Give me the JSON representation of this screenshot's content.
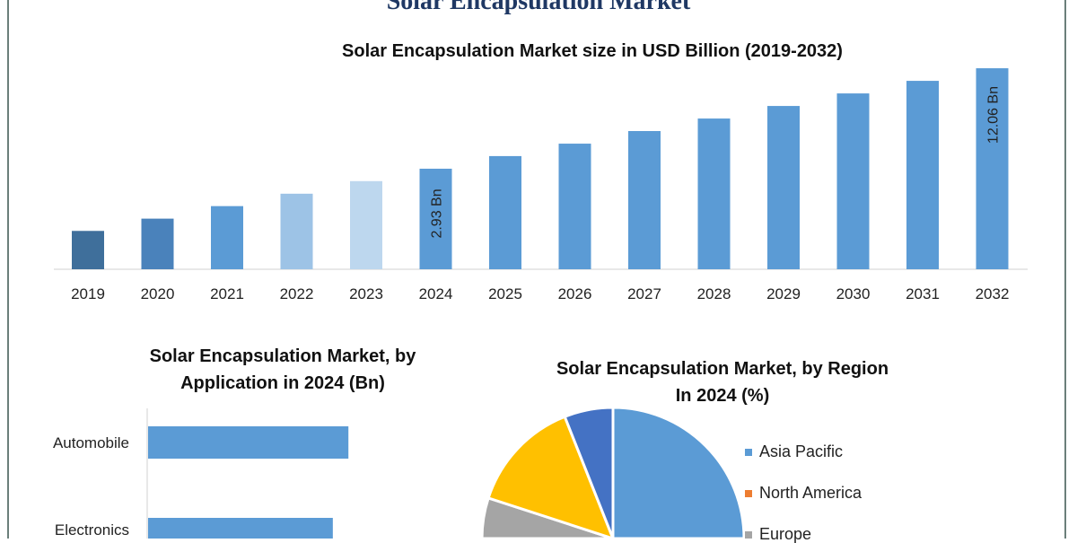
{
  "main_title": "Solar Encapsulation Market",
  "chart_data": [
    {
      "type": "bar",
      "title": "Solar Encapsulation Market size in USD Billion (2019-2032)",
      "categories": [
        "2019",
        "2020",
        "2021",
        "2022",
        "2023",
        "2024",
        "2025",
        "2026",
        "2027",
        "2028",
        "2029",
        "2030",
        "2031",
        "2032"
      ],
      "values": [
        1.22,
        1.45,
        1.73,
        2.06,
        2.46,
        2.93,
        3.5,
        4.17,
        4.98,
        5.94,
        7.09,
        8.46,
        10.1,
        12.06
      ],
      "data_labels": {
        "2024": "2.93 Bn",
        "2032": "12.06 Bn"
      },
      "colors": [
        "#3f6f9b",
        "#4a82bb",
        "#5b9bd5",
        "#9dc3e6",
        "#bdd7ee",
        "#5b9bd5",
        "#5b9bd5",
        "#5b9bd5",
        "#5b9bd5",
        "#5b9bd5",
        "#5b9bd5",
        "#5b9bd5",
        "#5b9bd5",
        "#5b9bd5"
      ],
      "grid": false
    },
    {
      "type": "bar",
      "orientation": "horizontal",
      "title_line1": "Solar Encapsulation Market, by",
      "title_line2": "Application in 2024 (Bn)",
      "categories": [
        "Automobile",
        "Electronics"
      ],
      "values": [
        0.9,
        0.83
      ],
      "color": "#5b9bd5"
    },
    {
      "type": "pie",
      "title_line1": "Solar Encapsulation Market, by Region",
      "title_line2": "In 2024 (%)",
      "slices": [
        {
          "name": "Asia Pacific",
          "value": 40,
          "color": "#5b9bd5"
        },
        {
          "name": "North America",
          "value": 25,
          "color": "#ed7d31"
        },
        {
          "name": "Europe",
          "value": 15,
          "color": "#a5a5a5"
        },
        {
          "name": "",
          "value": 14,
          "color": "#ffc000"
        },
        {
          "name": "",
          "value": 6,
          "color": "#4472c4"
        }
      ]
    }
  ]
}
